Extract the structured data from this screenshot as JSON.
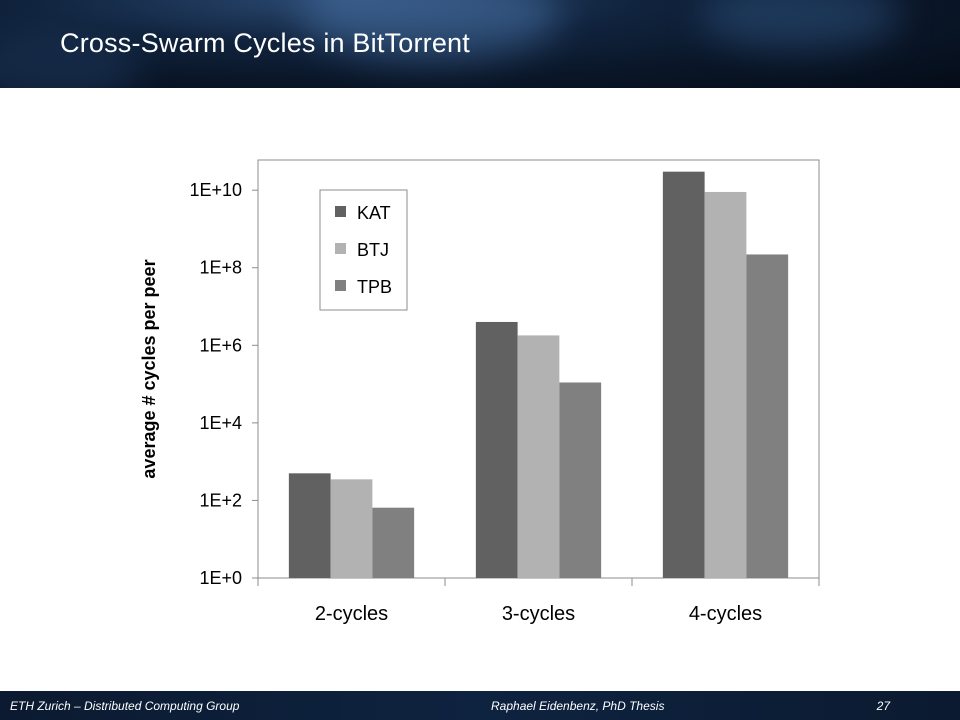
{
  "slide": {
    "title": "Cross-Swarm Cycles in BitTorrent"
  },
  "footer": {
    "left": "ETH Zurich – Distributed Computing Group",
    "center": "Raphael Eidenbenz, PhD Thesis",
    "page_number": "27"
  },
  "colors": {
    "KAT": "#616161",
    "BTJ": "#b2b2b2",
    "TPB": "#808080"
  },
  "chart_data": {
    "type": "bar",
    "categories": [
      "2-cycles",
      "3-cycles",
      "4-cycles"
    ],
    "series": [
      {
        "name": "KAT",
        "values": [
          500,
          4000000,
          30000000000
        ]
      },
      {
        "name": "BTJ",
        "values": [
          350,
          1800000,
          9000000000
        ]
      },
      {
        "name": "TPB",
        "values": [
          65,
          110000,
          220000000
        ]
      }
    ],
    "title": "",
    "xlabel": "",
    "ylabel": "average # cycles per peer",
    "yscale": "log",
    "ylim": [
      1,
      60000000000
    ],
    "ytick_labels": [
      "1E+0",
      "1E+2",
      "1E+4",
      "1E+6",
      "1E+8",
      "1E+10"
    ],
    "ytick_values": [
      1,
      100,
      10000,
      1000000,
      100000000,
      10000000000
    ],
    "legend_position": "top-left",
    "grid": false
  }
}
